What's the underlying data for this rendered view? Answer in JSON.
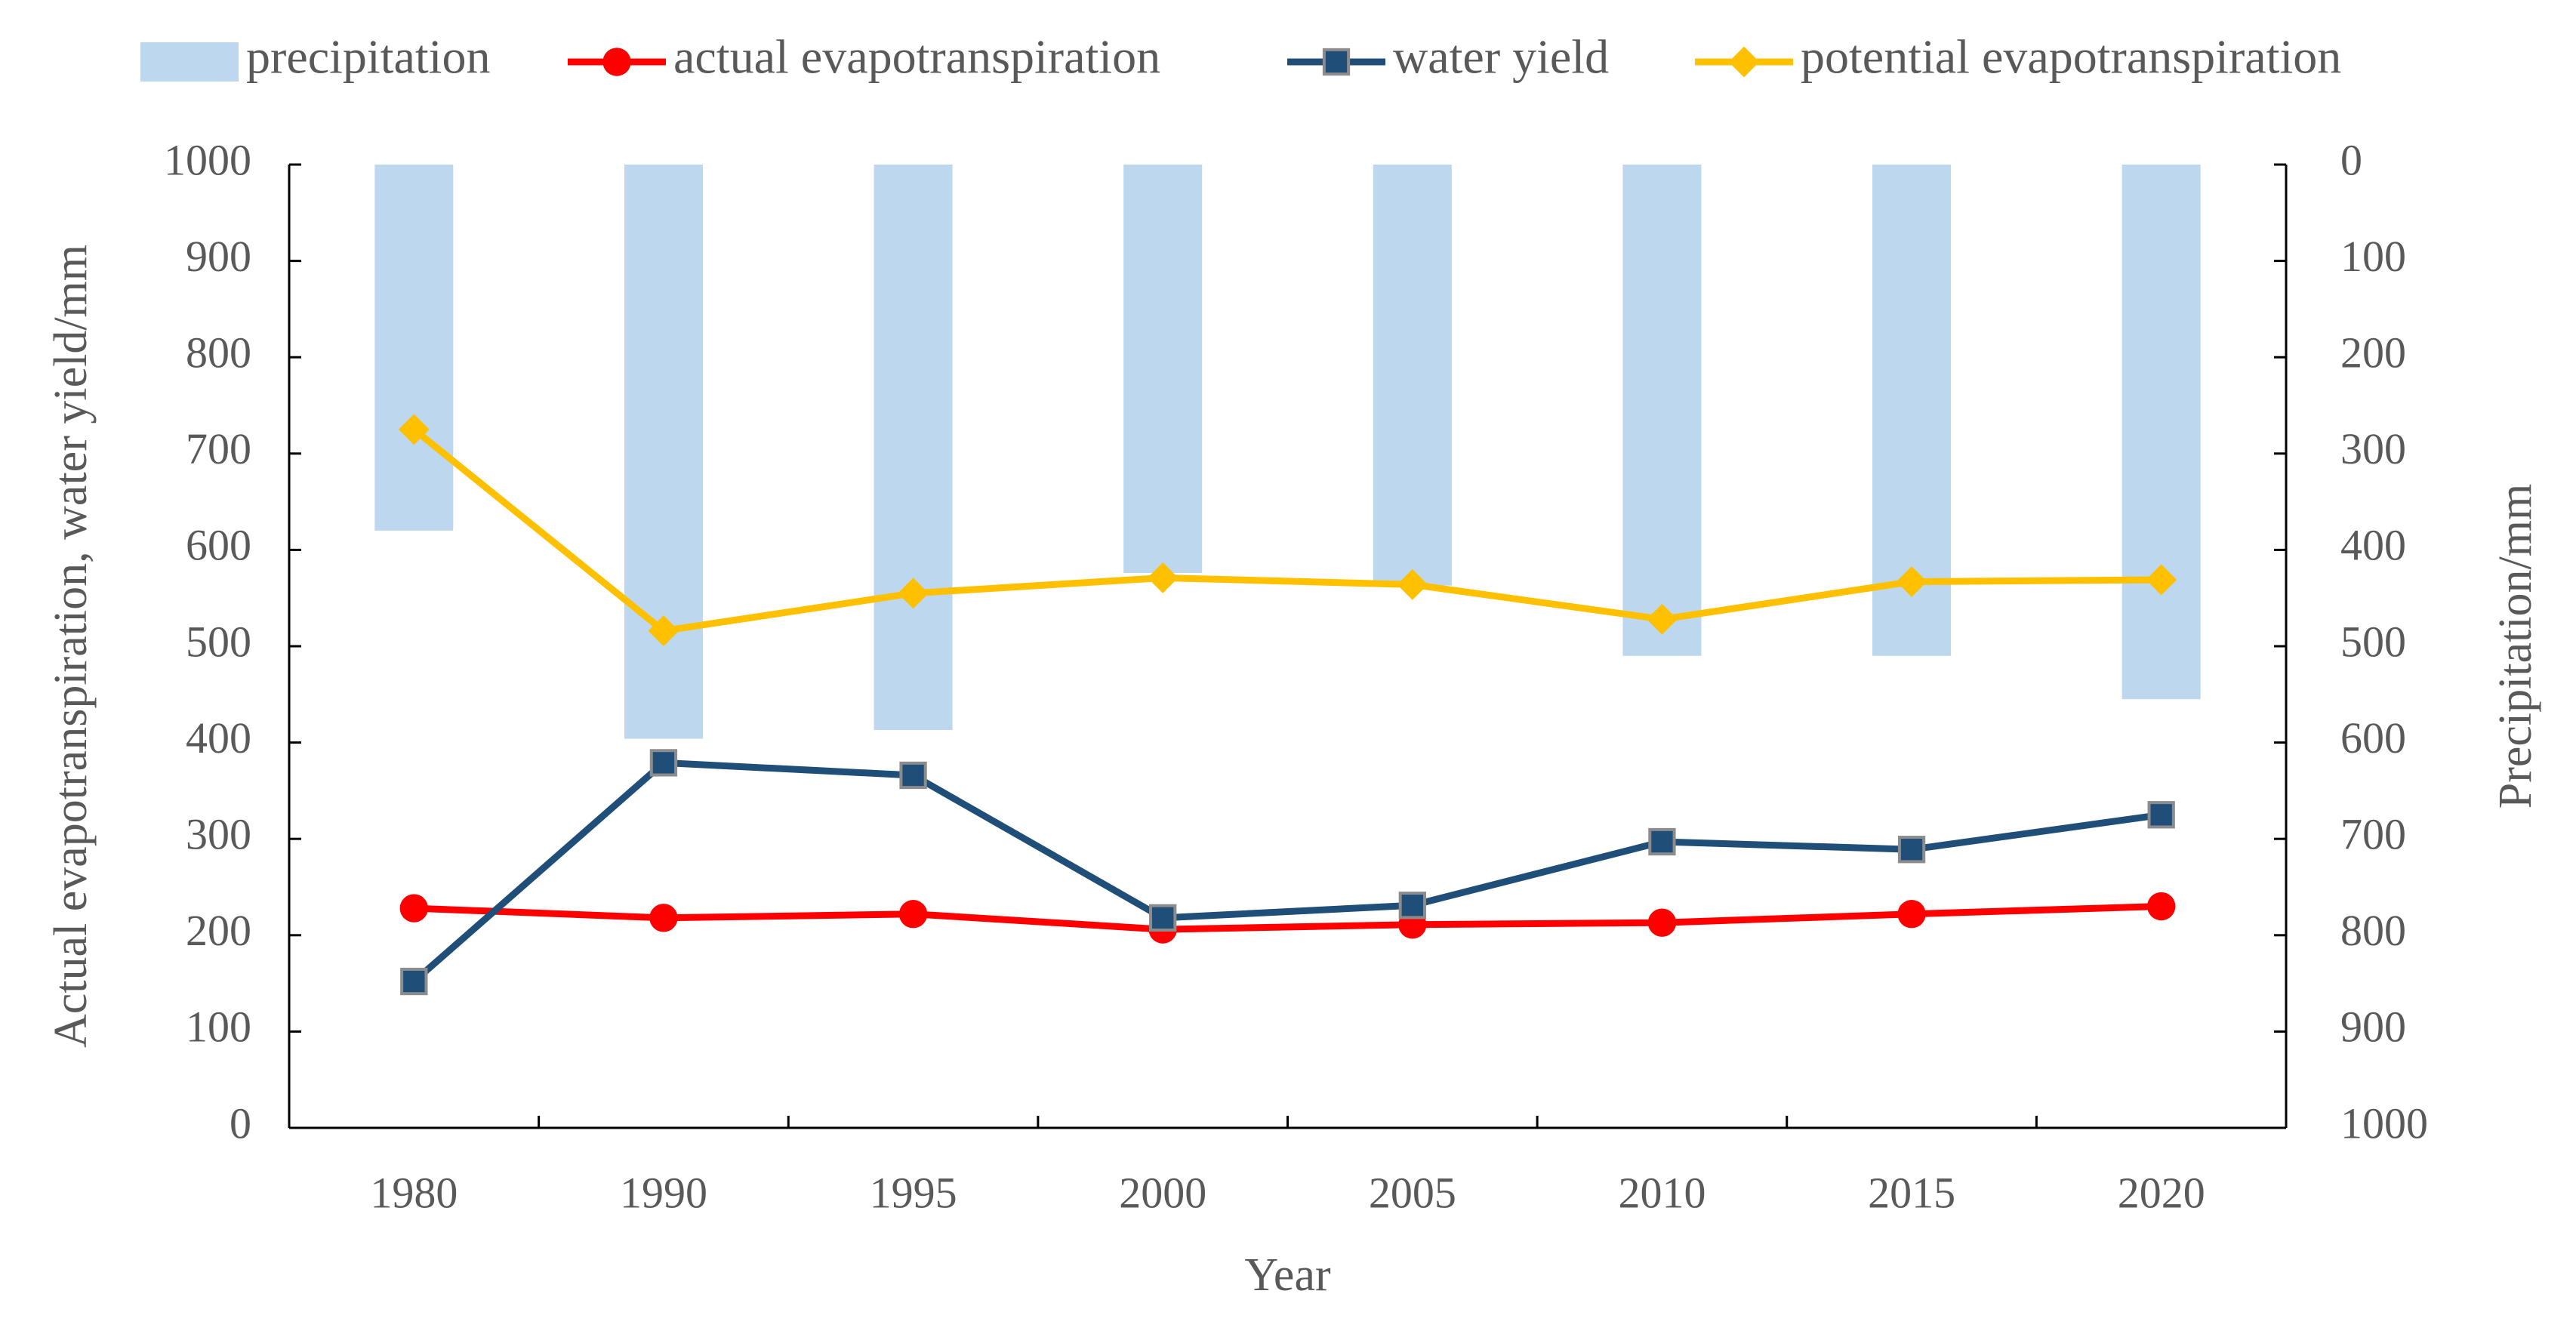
{
  "chart_data": {
    "type": "bar+line",
    "categories": [
      "1980",
      "1990",
      "1995",
      "2000",
      "2005",
      "2010",
      "2015",
      "2020"
    ],
    "xlabel": "Year",
    "ylabel_left": "Actual evapotranspiration, water  yield/mm",
    "ylabel_right": "Precipitation/mm",
    "ylim_left": [
      0,
      1000
    ],
    "ylim_right": [
      0,
      1000
    ],
    "right_axis_reversed": true,
    "yticks_left": [
      "0",
      "100",
      "200",
      "300",
      "400",
      "500",
      "600",
      "700",
      "800",
      "900",
      "1000"
    ],
    "yticks_right": [
      "0",
      "100",
      "200",
      "300",
      "400",
      "500",
      "600",
      "700",
      "800",
      "900",
      "1000"
    ],
    "bars": {
      "name": "precipitation",
      "axis": "right",
      "color": "#bdd7ee",
      "values": [
        380,
        596,
        587,
        424,
        437,
        510,
        510,
        555
      ]
    },
    "series": [
      {
        "name": "actual evapotranspiration",
        "axis": "left",
        "color": "#ff0000",
        "marker": "circle",
        "values": [
          228,
          218,
          222,
          206,
          211,
          213,
          222,
          230
        ]
      },
      {
        "name": "water yield",
        "axis": "left",
        "color": "#1f4e79",
        "marker": "square",
        "values": [
          152,
          379,
          366,
          218,
          231,
          297,
          289,
          325
        ]
      },
      {
        "name": "potential evapotranspiration",
        "axis": "left",
        "color": "#ffc000",
        "marker": "diamond",
        "values": [
          725,
          516,
          555,
          571,
          564,
          528,
          567,
          569
        ]
      }
    ],
    "legend": [
      "precipitation",
      "actual evapotranspiration",
      "water yield",
      "potential evapotranspiration"
    ],
    "legend_position": "top"
  }
}
